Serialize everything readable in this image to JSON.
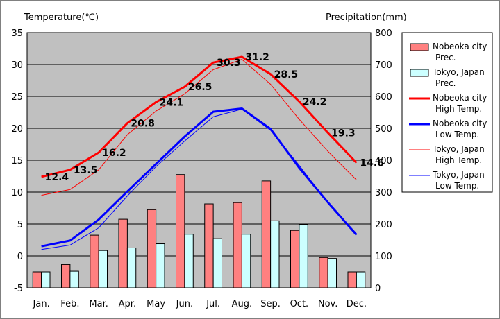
{
  "chart_data": {
    "type": "bar+line",
    "left_axis_title": "Temperature(℃)",
    "right_axis_title": "Precipitation(mm)",
    "left_axis": {
      "range": [
        -5,
        35
      ],
      "ticks": [
        -5,
        0,
        5,
        10,
        15,
        20,
        25,
        30,
        35
      ]
    },
    "right_axis": {
      "range": [
        0,
        800
      ],
      "ticks": [
        0,
        100,
        200,
        300,
        400,
        500,
        600,
        700,
        800
      ]
    },
    "categories": [
      "Jan.",
      "Feb.",
      "Mar.",
      "Apr.",
      "May",
      "Jun.",
      "Jul.",
      "Aug.",
      "Sep.",
      "Oct.",
      "Nov.",
      "Dec."
    ],
    "bar_series": [
      {
        "name": "Nobeoka city Prec.",
        "color": "#ff8080",
        "axis": "right",
        "values": [
          50,
          73,
          165,
          215,
          245,
          355,
          263,
          267,
          335,
          180,
          95,
          50
        ]
      },
      {
        "name": "Tokyo, Japan Prec.",
        "color": "#ccffff",
        "axis": "right",
        "values": [
          50,
          52,
          117,
          125,
          138,
          168,
          154,
          168,
          210,
          198,
          92,
          50
        ]
      }
    ],
    "line_series": [
      {
        "name": "Nobeoka city High Temp.",
        "color": "#ff0000",
        "width": "thick",
        "axis": "left",
        "values": [
          12.4,
          13.5,
          16.2,
          20.8,
          24.1,
          26.5,
          30.3,
          31.2,
          28.5,
          24.2,
          19.3,
          14.6
        ],
        "labels": [
          "12.4",
          "13.5",
          "16.2",
          "20.8",
          "24.1",
          "26.5",
          "30.3",
          "31.2",
          "28.5",
          "24.2",
          "19.3",
          "14.6"
        ]
      },
      {
        "name": "Nobeoka city Low Temp.",
        "color": "#0000ff",
        "width": "thick",
        "axis": "left",
        "values": [
          1.5,
          2.4,
          5.7,
          10.1,
          14.4,
          18.7,
          22.6,
          23.1,
          19.9,
          13.8,
          8.4,
          3.3
        ]
      },
      {
        "name": "Tokyo, Japan High Temp.",
        "color": "#ff0000",
        "width": "thin",
        "axis": "left",
        "values": [
          9.5,
          10.4,
          13.5,
          19.0,
          22.7,
          25.4,
          29.2,
          30.8,
          26.9,
          21.4,
          16.4,
          11.9
        ]
      },
      {
        "name": "Tokyo, Japan Low Temp.",
        "color": "#0000ff",
        "width": "thin",
        "axis": "left",
        "values": [
          1.0,
          1.7,
          4.4,
          9.4,
          14.0,
          18.0,
          21.8,
          23.0,
          19.7,
          14.2,
          8.3,
          3.5
        ]
      }
    ],
    "legend": {
      "placement": "right",
      "entries": [
        {
          "line1": "Nobeoka city",
          "line2": "Prec."
        },
        {
          "line1": "Tokyo, Japan",
          "line2": "Prec."
        },
        {
          "line1": "Nobeoka city",
          "line2": "High Temp."
        },
        {
          "line1": "Nobeoka city",
          "line2": "Low Temp."
        },
        {
          "line1": "Tokyo, Japan",
          "line2": "High Temp."
        },
        {
          "line1": "Tokyo, Japan",
          "line2": "Low Temp."
        }
      ]
    },
    "colors": {
      "plot_background": "#c0c0c0",
      "gridline": "#000000"
    }
  }
}
